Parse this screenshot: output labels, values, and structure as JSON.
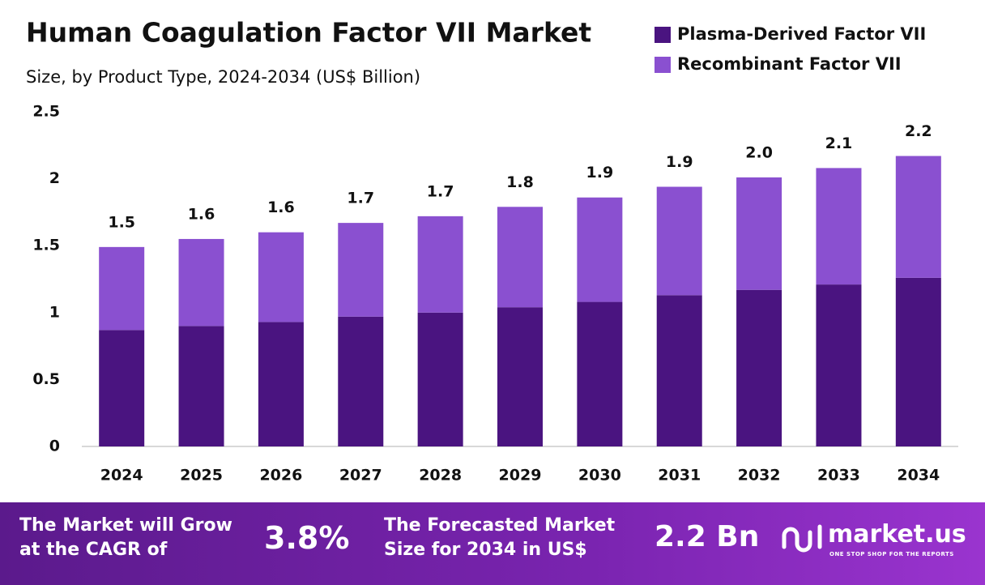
{
  "chart_data": {
    "type": "stacked-bar",
    "title": "Human Coagulation Factor VII Market",
    "subtitle": "Size, by Product Type, 2024-2034 (US$ Billion)",
    "categories": [
      "2024",
      "2025",
      "2026",
      "2027",
      "2028",
      "2029",
      "2030",
      "2031",
      "2032",
      "2033",
      "2034"
    ],
    "series": [
      {
        "name": "Plasma-Derived Factor VII",
        "color": "#4a1480",
        "values": [
          0.87,
          0.9,
          0.93,
          0.97,
          1.0,
          1.04,
          1.08,
          1.13,
          1.17,
          1.21,
          1.26
        ]
      },
      {
        "name": "Recombinant Factor VII",
        "color": "#8a50d0",
        "values": [
          0.62,
          0.65,
          0.67,
          0.7,
          0.72,
          0.75,
          0.78,
          0.81,
          0.84,
          0.87,
          0.91
        ]
      }
    ],
    "total_labels": [
      "1.5",
      "1.6",
      "1.6",
      "1.7",
      "1.7",
      "1.8",
      "1.9",
      "1.9",
      "2.0",
      "2.1",
      "2.2"
    ],
    "ylim": [
      0,
      2.5
    ],
    "yticks": [
      0,
      0.5,
      1,
      1.5,
      2,
      2.5
    ],
    "grid": false,
    "legend": "top-right"
  },
  "footer": {
    "cagr_text": "The Market will Grow at the CAGR of",
    "cagr_value": "3.8%",
    "forecast_text": "The Forecasted Market Size for 2034 in US$",
    "forecast_value": "2.2 Bn",
    "brand": "market.us",
    "tagline": "ONE STOP SHOP FOR THE REPORTS"
  }
}
